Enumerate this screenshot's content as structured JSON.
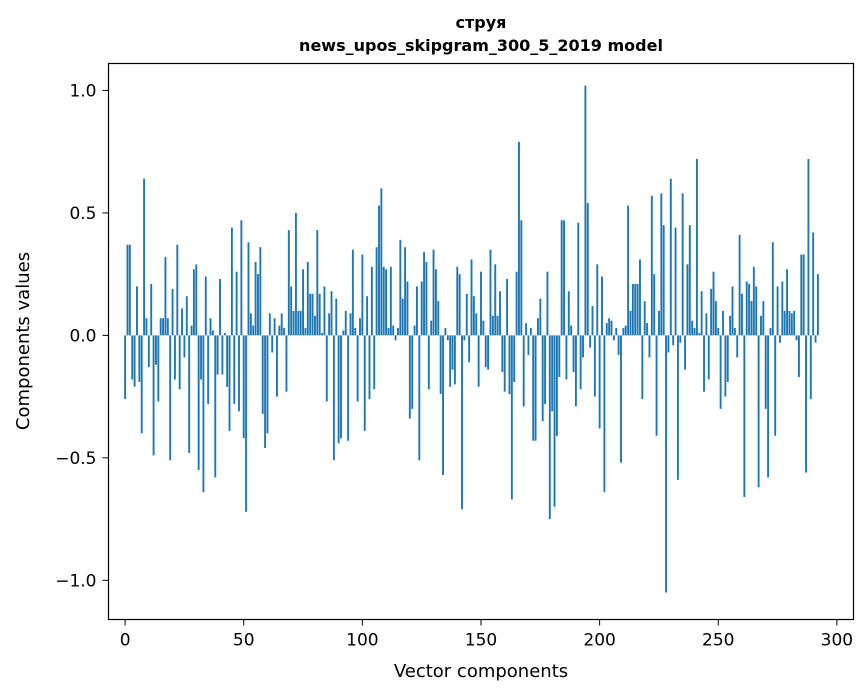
{
  "chart_data": {
    "type": "bar",
    "title": "струя",
    "subtitle": "news_upos_skipgram_300_5_2019 model",
    "xlabel": "Vector components",
    "ylabel": "Components values",
    "xlim": [
      -7,
      307
    ],
    "ylim": [
      -1.16,
      1.11
    ],
    "xticks": [
      0,
      50,
      100,
      150,
      200,
      250,
      300
    ],
    "yticks": [
      -1.0,
      -0.5,
      0.0,
      0.5,
      1.0
    ],
    "ytick_labels": [
      "−1.0",
      "−0.5",
      "0.0",
      "0.5",
      "1.0"
    ],
    "bar_color": "#1f77b4",
    "grid": false,
    "values": [
      -0.26,
      0.37,
      0.37,
      -0.18,
      -0.21,
      0.2,
      -0.19,
      -0.4,
      0.64,
      0.07,
      -0.13,
      0.21,
      -0.49,
      -0.12,
      -0.27,
      0.07,
      0.07,
      0.32,
      0.07,
      -0.51,
      0.19,
      -0.18,
      0.37,
      -0.22,
      0.11,
      -0.09,
      0.16,
      -0.48,
      0.04,
      0.27,
      0.29,
      -0.55,
      -0.18,
      -0.64,
      0.24,
      -0.28,
      0.07,
      0.02,
      -0.58,
      -0.16,
      0.23,
      -0.16,
      0.01,
      -0.21,
      -0.39,
      0.44,
      -0.28,
      0.26,
      -0.31,
      0.47,
      -0.42,
      -0.72,
      0.38,
      0.09,
      0.04,
      0.3,
      0.25,
      0.36,
      -0.32,
      -0.46,
      -0.4,
      0.09,
      -0.07,
      0.07,
      -0.25,
      0.04,
      0.09,
      0.03,
      -0.23,
      0.43,
      0.2,
      0.1,
      0.5,
      0.1,
      0.1,
      0.27,
      0.03,
      0.3,
      0.17,
      0.17,
      0.08,
      0.43,
      0.17,
      0.01,
      0.2,
      -0.27,
      0.09,
      0.18,
      -0.51,
      0.15,
      -0.44,
      -0.42,
      0.02,
      0.1,
      -0.43,
      0.09,
      0.35,
      0.03,
      -0.27,
      0.07,
      0.33,
      -0.39,
      0.16,
      -0.26,
      0.28,
      -0.22,
      0.36,
      0.53,
      0.6,
      0.28,
      0.27,
      0.03,
      0.28,
      0.04,
      -0.02,
      0.03,
      0.39,
      0.15,
      0.36,
      0.22,
      -0.34,
      -0.3,
      0.04,
      0.2,
      -0.51,
      0.22,
      0.34,
      0.3,
      -0.22,
      0.06,
      0.35,
      0.27,
      0.14,
      -0.24,
      -0.57,
      0.03,
      -0.02,
      -0.21,
      -0.14,
      -0.2,
      0.28,
      0.25,
      -0.71,
      -0.02,
      0.17,
      -0.11,
      0.31,
      0.16,
      0.09,
      -0.21,
      0.26,
      0.06,
      -0.13,
      -0.14,
      0.35,
      0.08,
      0.29,
      0.08,
      0.18,
      -0.15,
      -0.23,
      0.23,
      -0.24,
      -0.67,
      -0.19,
      0.26,
      0.79,
      0.47,
      -0.29,
      0.05,
      -0.08,
      0.03,
      -0.43,
      -0.43,
      0.07,
      0.15,
      -0.35,
      -0.28,
      0.26,
      -0.75,
      -0.31,
      -0.7,
      -0.41,
      -0.17,
      0.47,
      0.47,
      -0.18,
      0.18,
      0.04,
      -0.15,
      -0.29,
      0.46,
      -0.22,
      -0.09,
      1.02,
      0.54,
      -0.05,
      0.12,
      -0.25,
      0.29,
      -0.38,
      0.24,
      -0.64,
      0.05,
      0.07,
      0.06,
      -0.02,
      0.03,
      -0.08,
      -0.52,
      0.03,
      0.04,
      0.53,
      0.1,
      0.21,
      0.21,
      0.21,
      0.31,
      -0.26,
      0.14,
      0.05,
      -0.09,
      0.57,
      0.25,
      -0.41,
      0.1,
      0.58,
      0.45,
      -1.05,
      -0.07,
      0.64,
      -0.04,
      0.44,
      -0.59,
      -0.03,
      0.58,
      -0.14,
      0.29,
      0.45,
      0.06,
      0.03,
      0.72,
      0.01,
      0.18,
      -0.23,
      0.09,
      -0.18,
      0.19,
      0.26,
      0.14,
      0.03,
      -0.3,
      0.1,
      -0.25,
      -0.19,
      0.08,
      0.2,
      0.03,
      -0.09,
      0.41,
      0.17,
      -0.66,
      0.22,
      0.21,
      0.14,
      0.28,
      0.2,
      -0.62,
      0.08,
      0.14,
      -0.3,
      -0.58,
      0.03,
      0.38,
      -0.41,
      0.2,
      -0.03,
      0.22,
      0.1,
      0.27,
      0.1,
      0.09,
      0.1,
      -0.02,
      -0.17,
      0.33,
      0.33,
      -0.56,
      0.72,
      -0.26,
      0.42,
      -0.03,
      0.25
    ]
  }
}
